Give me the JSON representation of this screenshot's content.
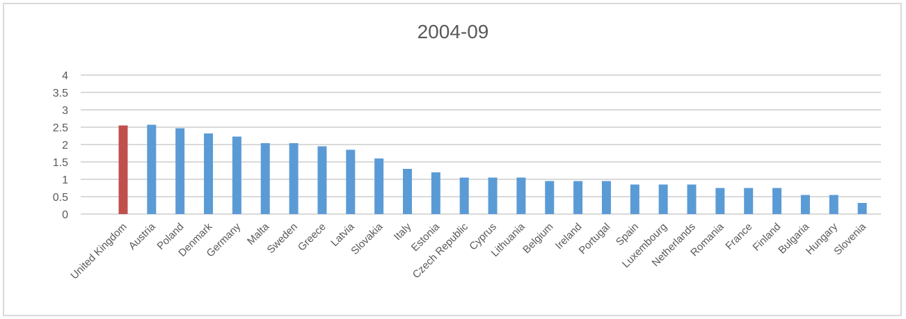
{
  "chart_data": {
    "type": "bar",
    "title": "2004-09",
    "xlabel": "",
    "ylabel": "",
    "ylim": [
      0,
      4
    ],
    "yticks": [
      "0",
      "0.5",
      "1",
      "1.5",
      "2",
      "2.5",
      "3",
      "3.5",
      "4"
    ],
    "grid": true,
    "legend": "none",
    "colors": {
      "default": "#5b9bd5",
      "highlight": "#c0504d",
      "grid": "#d9d9d9",
      "text": "#595959"
    },
    "highlight_category": "United Kingdom",
    "categories": [
      "United Kingdom",
      "Austria",
      "Poland",
      "Denmark",
      "Germany",
      "Malta",
      "Sweden",
      "Greece",
      "Latvia",
      "Slovakia",
      "Italy",
      "Estonia",
      "Czech Republic",
      "Cyprus",
      "Lithuania",
      "Belgium",
      "Ireland",
      "Portugal",
      "Spain",
      "Luxembourg",
      "Netherlands",
      "Romania",
      "France",
      "Finland",
      "Bulgaria",
      "Hungary",
      "Slovenia"
    ],
    "values": [
      2.55,
      2.57,
      2.47,
      2.32,
      2.23,
      2.04,
      2.04,
      1.95,
      1.85,
      1.6,
      1.3,
      1.2,
      1.05,
      1.05,
      1.05,
      0.95,
      0.95,
      0.95,
      0.85,
      0.85,
      0.85,
      0.75,
      0.75,
      0.75,
      0.55,
      0.55,
      0.32
    ]
  }
}
